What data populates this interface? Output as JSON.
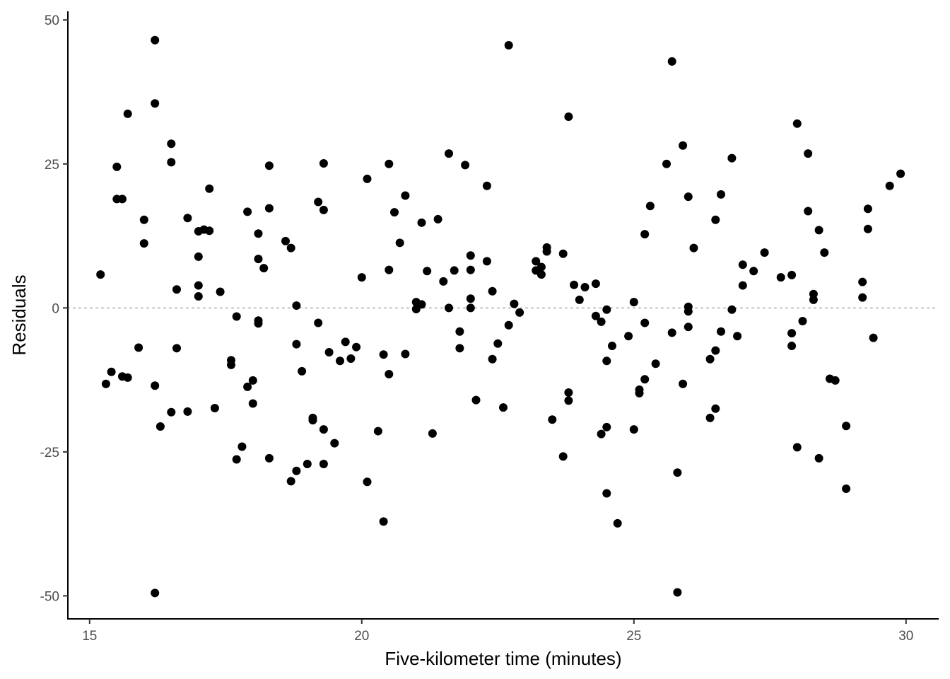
{
  "chart_data": {
    "type": "scatter",
    "title": "",
    "xlabel": "Five-kilometer time (minutes)",
    "ylabel": "Residuals",
    "xlim": [
      14.6,
      30.6
    ],
    "ylim": [
      -54,
      51.5
    ],
    "xticks": [
      15,
      20,
      25,
      30
    ],
    "xtick_labels": [
      "15",
      "20",
      "25",
      "30"
    ],
    "yticks": [
      -50,
      -25,
      0,
      25,
      50
    ],
    "ytick_labels": [
      "-50",
      "-25",
      "0",
      "25",
      "50"
    ],
    "reference_line": {
      "y": 0,
      "style": "dotted",
      "color": "#bdbdbd"
    },
    "grid": false,
    "legend": "none",
    "point_color": "#000000",
    "points": [
      [
        15.2,
        5.8
      ],
      [
        15.3,
        -13.2
      ],
      [
        15.4,
        -11.1
      ],
      [
        15.5,
        24.5
      ],
      [
        15.5,
        18.9
      ],
      [
        15.6,
        18.9
      ],
      [
        15.6,
        -11.9
      ],
      [
        15.7,
        33.7
      ],
      [
        15.7,
        -12.1
      ],
      [
        15.9,
        -6.9
      ],
      [
        16.0,
        15.3
      ],
      [
        16.0,
        11.2
      ],
      [
        16.2,
        46.5
      ],
      [
        16.2,
        35.5
      ],
      [
        16.2,
        -13.5
      ],
      [
        16.2,
        -49.5
      ],
      [
        16.3,
        -20.6
      ],
      [
        16.5,
        28.5
      ],
      [
        16.5,
        25.3
      ],
      [
        16.5,
        -18.1
      ],
      [
        16.6,
        3.2
      ],
      [
        16.6,
        -7.0
      ],
      [
        16.8,
        15.6
      ],
      [
        16.8,
        -18.0
      ],
      [
        17.0,
        13.3
      ],
      [
        17.0,
        8.9
      ],
      [
        17.0,
        3.9
      ],
      [
        17.0,
        2.0
      ],
      [
        17.1,
        13.6
      ],
      [
        17.2,
        20.7
      ],
      [
        17.2,
        13.4
      ],
      [
        17.3,
        -17.4
      ],
      [
        17.4,
        2.8
      ],
      [
        17.6,
        -9.1
      ],
      [
        17.6,
        -9.9
      ],
      [
        17.7,
        -1.5
      ],
      [
        17.7,
        -26.3
      ],
      [
        17.8,
        -24.1
      ],
      [
        17.9,
        16.7
      ],
      [
        17.9,
        -13.7
      ],
      [
        18.0,
        -12.6
      ],
      [
        18.0,
        -16.6
      ],
      [
        18.1,
        12.9
      ],
      [
        18.1,
        8.5
      ],
      [
        18.1,
        -2.2
      ],
      [
        18.1,
        -2.7
      ],
      [
        18.2,
        6.9
      ],
      [
        18.3,
        24.7
      ],
      [
        18.3,
        17.3
      ],
      [
        18.3,
        -26.1
      ],
      [
        18.6,
        11.6
      ],
      [
        18.7,
        10.4
      ],
      [
        18.7,
        -30.1
      ],
      [
        18.8,
        0.4
      ],
      [
        18.8,
        -6.3
      ],
      [
        18.8,
        -28.3
      ],
      [
        18.9,
        -11.0
      ],
      [
        19.0,
        -27.1
      ],
      [
        19.1,
        -19.1
      ],
      [
        19.1,
        -19.5
      ],
      [
        19.2,
        18.4
      ],
      [
        19.2,
        -2.6
      ],
      [
        19.3,
        25.1
      ],
      [
        19.3,
        17.0
      ],
      [
        19.3,
        -21.1
      ],
      [
        19.3,
        -27.1
      ],
      [
        19.4,
        -7.7
      ],
      [
        19.5,
        -23.5
      ],
      [
        19.6,
        -9.2
      ],
      [
        19.7,
        -5.9
      ],
      [
        19.8,
        -8.8
      ],
      [
        19.9,
        -6.8
      ],
      [
        20.0,
        5.3
      ],
      [
        20.1,
        22.4
      ],
      [
        20.1,
        -30.2
      ],
      [
        20.3,
        -21.4
      ],
      [
        20.4,
        -8.1
      ],
      [
        20.4,
        -37.1
      ],
      [
        20.5,
        25.0
      ],
      [
        20.5,
        6.6
      ],
      [
        20.5,
        -11.5
      ],
      [
        20.6,
        16.6
      ],
      [
        20.7,
        11.3
      ],
      [
        20.8,
        19.5
      ],
      [
        20.8,
        -8.0
      ],
      [
        21.0,
        1.0
      ],
      [
        21.0,
        -0.2
      ],
      [
        21.1,
        14.8
      ],
      [
        21.1,
        0.6
      ],
      [
        21.2,
        6.4
      ],
      [
        21.3,
        -21.8
      ],
      [
        21.4,
        15.4
      ],
      [
        21.5,
        4.6
      ],
      [
        21.6,
        26.8
      ],
      [
        21.6,
        0.0
      ],
      [
        21.7,
        6.5
      ],
      [
        21.8,
        -4.1
      ],
      [
        21.8,
        -7.0
      ],
      [
        21.9,
        24.8
      ],
      [
        22.0,
        9.1
      ],
      [
        22.0,
        6.6
      ],
      [
        22.0,
        1.6
      ],
      [
        22.0,
        0.0
      ],
      [
        22.1,
        -16.0
      ],
      [
        22.3,
        21.2
      ],
      [
        22.3,
        8.1
      ],
      [
        22.4,
        2.9
      ],
      [
        22.4,
        -8.9
      ],
      [
        22.5,
        -6.2
      ],
      [
        22.6,
        -17.3
      ],
      [
        22.7,
        45.6
      ],
      [
        22.7,
        -3.0
      ],
      [
        22.8,
        0.7
      ],
      [
        22.9,
        -0.8
      ],
      [
        23.2,
        8.1
      ],
      [
        23.2,
        6.5
      ],
      [
        23.3,
        7.1
      ],
      [
        23.3,
        5.8
      ],
      [
        23.4,
        10.5
      ],
      [
        23.4,
        9.8
      ],
      [
        23.5,
        -19.4
      ],
      [
        23.7,
        9.4
      ],
      [
        23.7,
        -25.8
      ],
      [
        23.8,
        33.2
      ],
      [
        23.8,
        -14.7
      ],
      [
        23.8,
        -16.1
      ],
      [
        23.9,
        4.0
      ],
      [
        24.0,
        1.4
      ],
      [
        24.1,
        3.6
      ],
      [
        24.3,
        4.2
      ],
      [
        24.3,
        -1.4
      ],
      [
        24.4,
        -2.4
      ],
      [
        24.4,
        -21.9
      ],
      [
        24.5,
        -0.3
      ],
      [
        24.5,
        -9.2
      ],
      [
        24.5,
        -20.7
      ],
      [
        24.5,
        -32.2
      ],
      [
        24.6,
        -6.6
      ],
      [
        24.7,
        -37.4
      ],
      [
        24.9,
        -4.9
      ],
      [
        25.0,
        1.0
      ],
      [
        25.0,
        -21.1
      ],
      [
        25.1,
        -14.2
      ],
      [
        25.1,
        -14.8
      ],
      [
        25.2,
        12.8
      ],
      [
        25.2,
        -2.6
      ],
      [
        25.2,
        -12.4
      ],
      [
        25.3,
        17.7
      ],
      [
        25.4,
        -9.7
      ],
      [
        25.6,
        25.0
      ],
      [
        25.7,
        42.8
      ],
      [
        25.7,
        -4.3
      ],
      [
        25.8,
        -28.6
      ],
      [
        25.8,
        -49.4
      ],
      [
        25.9,
        28.2
      ],
      [
        25.9,
        -13.2
      ],
      [
        26.0,
        19.3
      ],
      [
        26.0,
        0.2
      ],
      [
        26.0,
        -0.6
      ],
      [
        26.0,
        -3.3
      ],
      [
        26.1,
        10.4
      ],
      [
        26.4,
        -8.9
      ],
      [
        26.4,
        -19.1
      ],
      [
        26.5,
        15.3
      ],
      [
        26.5,
        -7.4
      ],
      [
        26.5,
        -17.5
      ],
      [
        26.6,
        19.7
      ],
      [
        26.6,
        -4.1
      ],
      [
        26.8,
        26.0
      ],
      [
        26.8,
        -0.3
      ],
      [
        26.9,
        -4.9
      ],
      [
        27.0,
        7.5
      ],
      [
        27.0,
        3.9
      ],
      [
        27.2,
        6.4
      ],
      [
        27.4,
        9.6
      ],
      [
        27.7,
        5.3
      ],
      [
        27.9,
        5.7
      ],
      [
        27.9,
        -4.4
      ],
      [
        27.9,
        -6.6
      ],
      [
        28.0,
        32.0
      ],
      [
        28.0,
        -24.2
      ],
      [
        28.1,
        -2.3
      ],
      [
        28.2,
        26.8
      ],
      [
        28.2,
        16.8
      ],
      [
        28.3,
        2.4
      ],
      [
        28.3,
        1.4
      ],
      [
        28.4,
        13.5
      ],
      [
        28.4,
        -26.1
      ],
      [
        28.5,
        9.6
      ],
      [
        28.6,
        -12.3
      ],
      [
        28.7,
        -12.6
      ],
      [
        28.9,
        -20.5
      ],
      [
        28.9,
        -31.4
      ],
      [
        29.2,
        4.5
      ],
      [
        29.2,
        1.8
      ],
      [
        29.3,
        17.2
      ],
      [
        29.3,
        13.7
      ],
      [
        29.4,
        -5.2
      ],
      [
        29.7,
        21.2
      ],
      [
        29.9,
        23.3
      ]
    ]
  }
}
